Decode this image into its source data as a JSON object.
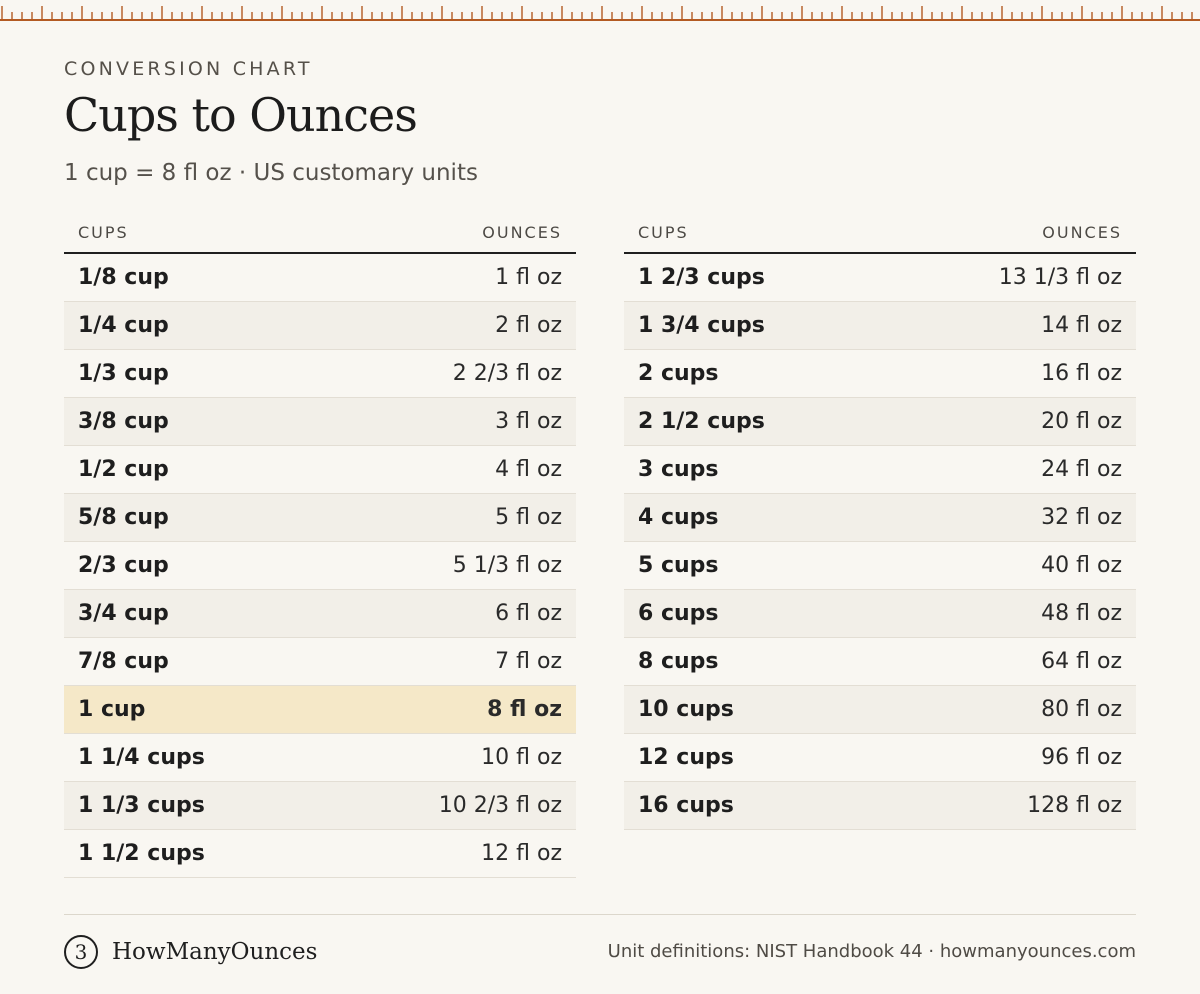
{
  "header": {
    "eyebrow": "CONVERSION CHART",
    "title": "Cups to Ounces",
    "subtitle": "1 cup = 8 fl oz · US customary units"
  },
  "columns": {
    "cups": "CUPS",
    "ounces": "OUNCES"
  },
  "left_table": [
    {
      "cups": "1/8 cup",
      "oz": "1 fl oz"
    },
    {
      "cups": "1/4 cup",
      "oz": "2 fl oz"
    },
    {
      "cups": "1/3 cup",
      "oz": "2 2/3 fl oz"
    },
    {
      "cups": "3/8 cup",
      "oz": "3 fl oz"
    },
    {
      "cups": "1/2 cup",
      "oz": "4 fl oz"
    },
    {
      "cups": "5/8 cup",
      "oz": "5 fl oz"
    },
    {
      "cups": "2/3 cup",
      "oz": "5 1/3 fl oz"
    },
    {
      "cups": "3/4 cup",
      "oz": "6 fl oz"
    },
    {
      "cups": "7/8 cup",
      "oz": "7 fl oz"
    },
    {
      "cups": "1 cup",
      "oz": "8 fl oz",
      "highlight": true
    },
    {
      "cups": "1 1/4 cups",
      "oz": "10 fl oz"
    },
    {
      "cups": "1 1/3 cups",
      "oz": "10 2/3 fl oz"
    },
    {
      "cups": "1 1/2 cups",
      "oz": "12 fl oz"
    }
  ],
  "right_table": [
    {
      "cups": "1 2/3 cups",
      "oz": "13 1/3 fl oz"
    },
    {
      "cups": "1 3/4 cups",
      "oz": "14 fl oz"
    },
    {
      "cups": "2 cups",
      "oz": "16 fl oz"
    },
    {
      "cups": "2 1/2 cups",
      "oz": "20 fl oz"
    },
    {
      "cups": "3 cups",
      "oz": "24 fl oz"
    },
    {
      "cups": "4 cups",
      "oz": "32 fl oz"
    },
    {
      "cups": "5 cups",
      "oz": "40 fl oz"
    },
    {
      "cups": "6 cups",
      "oz": "48 fl oz"
    },
    {
      "cups": "8 cups",
      "oz": "64 fl oz"
    },
    {
      "cups": "10 cups",
      "oz": "80 fl oz"
    },
    {
      "cups": "12 cups",
      "oz": "96 fl oz"
    },
    {
      "cups": "16 cups",
      "oz": "128 fl oz"
    }
  ],
  "footer": {
    "brand_mark": "3",
    "brand_name": "HowManyOunces",
    "source": "Unit definitions: NIST Handbook 44 · howmanyounces.com"
  },
  "colors": {
    "background": "#f9f7f2",
    "ruler": "#b35a22",
    "stripe": "#f2efe8",
    "highlight": "#f5e8c8"
  },
  "icons": {
    "ruler": "ruler-ticks",
    "brand": "brand-logo-icon"
  }
}
